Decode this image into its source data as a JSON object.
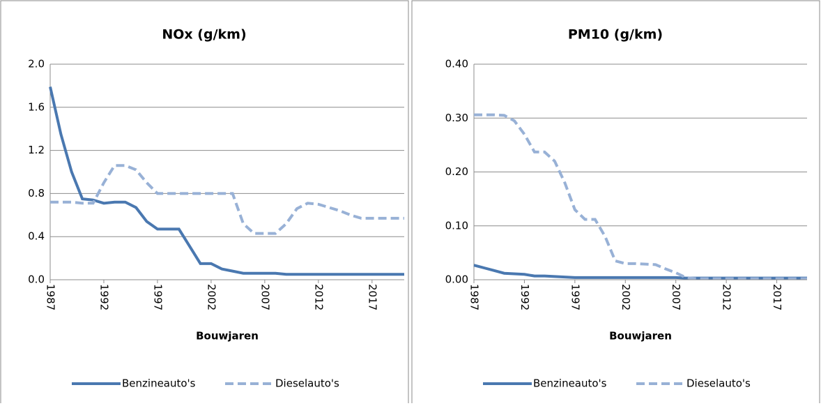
{
  "chart_data": [
    {
      "type": "line",
      "title": "NOx (g/km)",
      "x_label": "Bouwjaren",
      "x": [
        1987,
        1988,
        1989,
        1990,
        1991,
        1992,
        1993,
        1994,
        1995,
        1996,
        1997,
        1998,
        1999,
        2000,
        2001,
        2002,
        2003,
        2004,
        2005,
        2006,
        2007,
        2008,
        2009,
        2010,
        2011,
        2012,
        2013,
        2014,
        2015,
        2016,
        2017,
        2018,
        2019,
        2020
      ],
      "xlim": [
        1987,
        2020
      ],
      "xticks": [
        1987,
        1992,
        1997,
        2002,
        2007,
        2012,
        2017
      ],
      "ylim": [
        0,
        2.0
      ],
      "yticks": [
        {
          "value": 0,
          "label": "0.0"
        },
        {
          "value": 0.4,
          "label": "0.4"
        },
        {
          "value": 0.8,
          "label": "0.8"
        },
        {
          "value": 1.2,
          "label": "1.2"
        },
        {
          "value": 1.6,
          "label": "1.6"
        },
        {
          "value": 2.0,
          "label": "2.0"
        }
      ],
      "grid": true,
      "series": [
        {
          "name": "Benzineauto's",
          "color": "#4a78b0",
          "dashed": false,
          "values": [
            1.79,
            1.35,
            1.0,
            0.75,
            0.74,
            0.71,
            0.72,
            0.72,
            0.67,
            0.54,
            0.47,
            0.47,
            0.47,
            0.31,
            0.15,
            0.15,
            0.1,
            0.08,
            0.06,
            0.06,
            0.06,
            0.06,
            0.05,
            0.05,
            0.05,
            0.05,
            0.05,
            0.05,
            0.05,
            0.05,
            0.05,
            0.05,
            0.05,
            0.05
          ]
        },
        {
          "name": "Dieselauto's",
          "color": "#98b1d6",
          "dashed": true,
          "values": [
            0.72,
            0.72,
            0.72,
            0.71,
            0.71,
            0.9,
            1.06,
            1.06,
            1.02,
            0.9,
            0.8,
            0.8,
            0.8,
            0.8,
            0.8,
            0.8,
            0.8,
            0.8,
            0.52,
            0.43,
            0.43,
            0.43,
            0.52,
            0.66,
            0.71,
            0.7,
            0.67,
            0.64,
            0.6,
            0.57,
            0.57,
            0.57,
            0.57,
            0.57
          ]
        }
      ]
    },
    {
      "type": "line",
      "title": "PM10 (g/km)",
      "x_label": "Bouwjaren",
      "x": [
        1987,
        1988,
        1989,
        1990,
        1991,
        1992,
        1993,
        1994,
        1995,
        1996,
        1997,
        1998,
        1999,
        2000,
        2001,
        2002,
        2003,
        2004,
        2005,
        2006,
        2007,
        2008,
        2009,
        2010,
        2011,
        2012,
        2013,
        2014,
        2015,
        2016,
        2017,
        2018,
        2019,
        2020
      ],
      "xlim": [
        1987,
        2020
      ],
      "xticks": [
        1987,
        1992,
        1997,
        2002,
        2007,
        2012,
        2017
      ],
      "ylim": [
        0,
        0.4
      ],
      "yticks": [
        {
          "value": 0,
          "label": "0.00"
        },
        {
          "value": 0.1,
          "label": "0.10"
        },
        {
          "value": 0.2,
          "label": "0.20"
        },
        {
          "value": 0.3,
          "label": "0.30"
        },
        {
          "value": 0.4,
          "label": "0.40"
        }
      ],
      "grid": true,
      "series": [
        {
          "name": "Benzineauto's",
          "color": "#4a78b0",
          "dashed": false,
          "values": [
            0.027,
            0.022,
            0.017,
            0.012,
            0.011,
            0.01,
            0.007,
            0.007,
            0.006,
            0.005,
            0.004,
            0.004,
            0.004,
            0.004,
            0.004,
            0.004,
            0.004,
            0.004,
            0.004,
            0.004,
            0.004,
            0.003,
            0.003,
            0.003,
            0.003,
            0.003,
            0.003,
            0.003,
            0.003,
            0.003,
            0.003,
            0.003,
            0.003,
            0.003
          ]
        },
        {
          "name": "Dieselauto's",
          "color": "#98b1d6",
          "dashed": true,
          "values": [
            0.306,
            0.306,
            0.306,
            0.305,
            0.295,
            0.27,
            0.237,
            0.237,
            0.22,
            0.18,
            0.13,
            0.112,
            0.112,
            0.08,
            0.035,
            0.03,
            0.03,
            0.029,
            0.028,
            0.02,
            0.013,
            0.004,
            0.002,
            0.002,
            0.002,
            0.002,
            0.002,
            0.002,
            0.002,
            0.002,
            0.002,
            0.002,
            0.002,
            0.002
          ]
        }
      ]
    }
  ]
}
